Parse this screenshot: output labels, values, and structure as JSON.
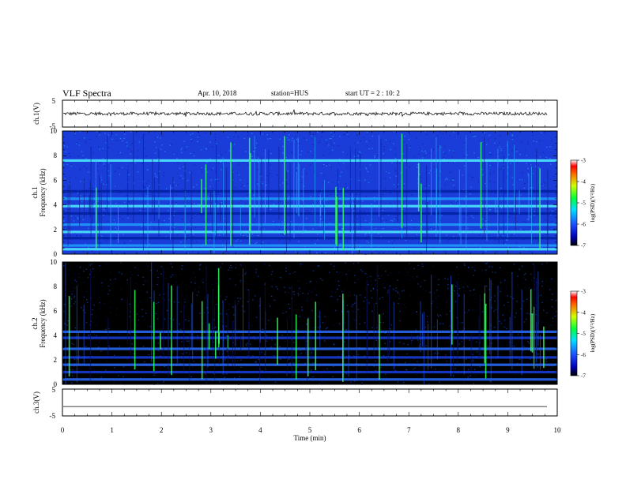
{
  "header": {
    "title": "VLF Spectra",
    "date": "Apr. 10, 2018",
    "station": "station=HUS",
    "start_ut": "start UT =  2 : 10: 2"
  },
  "chart_data": [
    {
      "type": "line",
      "panel": "ch1-waveform",
      "ylabel": "ch.1(V)",
      "yticks": [
        "5",
        "-5"
      ],
      "ylim": [
        -5,
        5
      ],
      "xlim": [
        0,
        10
      ],
      "trace_level": 0,
      "trace_noise": 0.6
    },
    {
      "type": "heatmap",
      "panel": "ch1-spectrogram",
      "ylabel": "ch.1 Frequency (kHz)",
      "ylabel_line1": "ch.1",
      "ylabel_line2": "Frequency (kHz)",
      "yticks": [
        "0",
        "2",
        "4",
        "6",
        "8",
        "10"
      ],
      "ylim": [
        0,
        10
      ],
      "xlim": [
        0,
        10
      ],
      "colorbar": {
        "label": "log(PSD)(V²/Hz)",
        "ticks": [
          "-3",
          "-4",
          "-5",
          "-6",
          "-7"
        ],
        "range": [
          -7,
          -3
        ]
      },
      "bands_khz": [
        0.4,
        0.7,
        1.3,
        1.8,
        2.4,
        3.3,
        3.9,
        4.5,
        5.1,
        7.6
      ]
    },
    {
      "type": "heatmap",
      "panel": "ch2-spectrogram",
      "ylabel": "ch.2 Frequency (kHz)",
      "ylabel_line1": "ch.2",
      "ylabel_line2": "Frequency (kHz)",
      "yticks": [
        "0",
        "2",
        "4",
        "6",
        "8",
        "10"
      ],
      "ylim": [
        0,
        10
      ],
      "xlim": [
        0,
        10
      ],
      "colorbar": {
        "label": "log(PSD)(V²/Hz)",
        "ticks": [
          "-3",
          "-4",
          "-5",
          "-6",
          "-7"
        ],
        "range": [
          -7,
          -3
        ]
      },
      "bands_khz": [
        0.4,
        1.0,
        1.6,
        2.2,
        2.9,
        3.8,
        4.3
      ]
    },
    {
      "type": "line",
      "panel": "ch3-waveform",
      "ylabel": "ch.3(V)",
      "yticks": [
        "5",
        "-5"
      ],
      "ylim": [
        -5,
        5
      ],
      "xlim": [
        0,
        10
      ],
      "trace_level": -1.5,
      "trace_noise": 0
    }
  ],
  "xaxis": {
    "label": "Time (min)",
    "ticks": [
      "0",
      "1",
      "2",
      "3",
      "4",
      "5",
      "6",
      "7",
      "8",
      "9",
      "10"
    ]
  }
}
